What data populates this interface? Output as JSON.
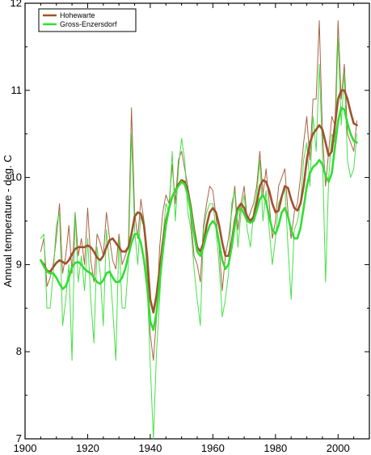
{
  "chart_data": {
    "type": "line",
    "title": "",
    "xlabel": "",
    "ylabel": "Annual temperature - deg. C",
    "xlim": [
      1900,
      2010
    ],
    "ylim": [
      7,
      12
    ],
    "xticks": [
      1900,
      1920,
      1940,
      1960,
      1980,
      2000
    ],
    "yticks": [
      7,
      8,
      9,
      10,
      11,
      12
    ],
    "grid": false,
    "legend_position": "top-left",
    "colors": {
      "hohewarte": "#a0522d",
      "gross": "#33dd33"
    },
    "series": [
      {
        "name": "Hohewarte",
        "role": "smoothed",
        "x": [
          1905,
          1906,
          1907,
          1908,
          1909,
          1910,
          1911,
          1912,
          1913,
          1914,
          1915,
          1916,
          1917,
          1918,
          1919,
          1920,
          1921,
          1922,
          1923,
          1924,
          1925,
          1926,
          1927,
          1928,
          1929,
          1930,
          1931,
          1932,
          1933,
          1934,
          1935,
          1936,
          1937,
          1938,
          1939,
          1940,
          1941,
          1942,
          1943,
          1944,
          1945,
          1946,
          1947,
          1948,
          1949,
          1950,
          1951,
          1952,
          1953,
          1954,
          1955,
          1956,
          1957,
          1958,
          1959,
          1960,
          1961,
          1962,
          1963,
          1964,
          1965,
          1966,
          1967,
          1968,
          1969,
          1970,
          1971,
          1972,
          1973,
          1974,
          1975,
          1976,
          1977,
          1978,
          1979,
          1980,
          1981,
          1982,
          1983,
          1984,
          1985,
          1986,
          1987,
          1988,
          1989,
          1990,
          1991,
          1992,
          1993,
          1994,
          1995,
          1996,
          1997,
          1998,
          1999,
          2000,
          2001,
          2002,
          2003,
          2004,
          2005,
          2006
        ],
        "values": [
          9.05,
          9.0,
          8.93,
          8.92,
          8.97,
          9.02,
          9.05,
          9.03,
          9.01,
          9.05,
          9.12,
          9.18,
          9.2,
          9.2,
          9.2,
          9.22,
          9.2,
          9.15,
          9.08,
          9.05,
          9.1,
          9.2,
          9.28,
          9.3,
          9.25,
          9.2,
          9.15,
          9.15,
          9.2,
          9.35,
          9.55,
          9.6,
          9.58,
          9.45,
          9.1,
          8.6,
          8.45,
          8.65,
          8.95,
          9.25,
          9.5,
          9.65,
          9.78,
          9.85,
          9.92,
          9.97,
          9.95,
          9.85,
          9.65,
          9.4,
          9.2,
          9.15,
          9.25,
          9.45,
          9.6,
          9.65,
          9.6,
          9.45,
          9.25,
          9.1,
          9.1,
          9.25,
          9.5,
          9.65,
          9.7,
          9.65,
          9.55,
          9.5,
          9.55,
          9.7,
          9.9,
          9.97,
          9.95,
          9.85,
          9.7,
          9.6,
          9.62,
          9.78,
          9.9,
          9.88,
          9.75,
          9.65,
          9.62,
          9.7,
          9.9,
          10.2,
          10.4,
          10.5,
          10.55,
          10.6,
          10.55,
          10.4,
          10.25,
          10.3,
          10.6,
          10.9,
          11.0,
          11.0,
          10.9,
          10.75,
          10.62,
          10.6
        ]
      },
      {
        "name": "Hohewarte",
        "role": "annual",
        "x": [
          1905,
          1906,
          1907,
          1908,
          1909,
          1910,
          1911,
          1912,
          1913,
          1914,
          1915,
          1916,
          1917,
          1918,
          1919,
          1920,
          1921,
          1922,
          1923,
          1924,
          1925,
          1926,
          1927,
          1928,
          1929,
          1930,
          1931,
          1932,
          1933,
          1934,
          1935,
          1936,
          1937,
          1938,
          1939,
          1940,
          1941,
          1942,
          1943,
          1944,
          1945,
          1946,
          1947,
          1948,
          1949,
          1950,
          1951,
          1952,
          1953,
          1954,
          1955,
          1956,
          1957,
          1958,
          1959,
          1960,
          1961,
          1962,
          1963,
          1964,
          1965,
          1966,
          1967,
          1968,
          1969,
          1970,
          1971,
          1972,
          1973,
          1974,
          1975,
          1976,
          1977,
          1978,
          1979,
          1980,
          1981,
          1982,
          1983,
          1984,
          1985,
          1986,
          1987,
          1988,
          1989,
          1990,
          1991,
          1992,
          1993,
          1994,
          1995,
          1996,
          1997,
          1998,
          1999,
          2000,
          2001,
          2002,
          2003,
          2004,
          2005,
          2006
        ],
        "values": [
          9.15,
          9.3,
          8.75,
          8.85,
          9.0,
          9.3,
          9.7,
          8.9,
          9.1,
          9.45,
          8.9,
          9.6,
          9.1,
          9.3,
          9.0,
          9.65,
          9.05,
          8.8,
          9.35,
          9.25,
          9.1,
          9.6,
          9.3,
          9.05,
          8.95,
          9.35,
          9.0,
          9.1,
          9.2,
          10.8,
          9.6,
          9.3,
          9.75,
          9.5,
          9.0,
          8.2,
          7.9,
          8.4,
          9.2,
          9.6,
          9.8,
          9.7,
          10.15,
          9.7,
          10.2,
          10.3,
          10.1,
          9.9,
          9.5,
          9.1,
          9.0,
          8.8,
          9.45,
          9.7,
          9.9,
          9.85,
          9.55,
          9.2,
          8.7,
          9.1,
          9.3,
          9.6,
          9.9,
          9.4,
          9.7,
          9.9,
          9.5,
          9.6,
          9.7,
          9.9,
          10.3,
          9.8,
          10.1,
          9.7,
          9.3,
          9.5,
          9.9,
          10.0,
          10.1,
          9.6,
          9.3,
          9.6,
          9.7,
          10.0,
          10.4,
          10.7,
          10.2,
          10.9,
          10.9,
          11.8,
          10.5,
          9.9,
          10.3,
          10.7,
          10.6,
          11.8,
          10.9,
          11.3,
          10.5,
          10.4,
          10.3,
          10.65
        ]
      },
      {
        "name": "Gross-Enzersdorf",
        "role": "smoothed",
        "x": [
          1905,
          1906,
          1907,
          1908,
          1909,
          1910,
          1911,
          1912,
          1913,
          1914,
          1915,
          1916,
          1917,
          1918,
          1919,
          1920,
          1921,
          1922,
          1923,
          1924,
          1925,
          1926,
          1927,
          1928,
          1929,
          1930,
          1931,
          1932,
          1933,
          1934,
          1935,
          1936,
          1937,
          1938,
          1939,
          1940,
          1941,
          1942,
          1943,
          1944,
          1945,
          1946,
          1947,
          1948,
          1949,
          1950,
          1951,
          1952,
          1953,
          1954,
          1955,
          1956,
          1957,
          1958,
          1959,
          1960,
          1961,
          1962,
          1963,
          1964,
          1965,
          1966,
          1967,
          1968,
          1969,
          1970,
          1971,
          1972,
          1973,
          1974,
          1975,
          1976,
          1977,
          1978,
          1979,
          1980,
          1981,
          1982,
          1983,
          1984,
          1985,
          1986,
          1987,
          1988,
          1989,
          1990,
          1991,
          1992,
          1993,
          1994,
          1995,
          1996,
          1997,
          1998,
          1999,
          2000,
          2001,
          2002,
          2003,
          2004,
          2005,
          2006
        ],
        "values": [
          9.05,
          8.98,
          8.92,
          8.9,
          8.9,
          8.85,
          8.78,
          8.72,
          8.75,
          8.85,
          8.97,
          9.02,
          9.03,
          9.0,
          8.95,
          8.92,
          8.9,
          8.85,
          8.8,
          8.78,
          8.82,
          8.9,
          8.92,
          8.85,
          8.8,
          8.8,
          8.85,
          8.95,
          9.1,
          9.25,
          9.35,
          9.35,
          9.25,
          9.05,
          8.75,
          8.35,
          8.25,
          8.45,
          8.8,
          9.15,
          9.45,
          9.65,
          9.78,
          9.85,
          9.9,
          9.95,
          9.92,
          9.8,
          9.6,
          9.35,
          9.15,
          9.1,
          9.2,
          9.35,
          9.45,
          9.5,
          9.45,
          9.25,
          9.05,
          8.95,
          9.0,
          9.2,
          9.45,
          9.62,
          9.65,
          9.58,
          9.5,
          9.48,
          9.5,
          9.62,
          9.75,
          9.8,
          9.72,
          9.55,
          9.4,
          9.35,
          9.45,
          9.6,
          9.65,
          9.55,
          9.4,
          9.3,
          9.3,
          9.42,
          9.65,
          9.9,
          10.05,
          10.12,
          10.15,
          10.2,
          10.15,
          10.02,
          9.95,
          10.05,
          10.35,
          10.65,
          10.8,
          10.78,
          10.62,
          10.5,
          10.42,
          10.4
        ]
      },
      {
        "name": "Gross-Enzersdorf",
        "role": "annual",
        "x": [
          1905,
          1906,
          1907,
          1908,
          1909,
          1910,
          1911,
          1912,
          1913,
          1914,
          1915,
          1916,
          1917,
          1918,
          1919,
          1920,
          1921,
          1922,
          1923,
          1924,
          1925,
          1926,
          1927,
          1928,
          1929,
          1930,
          1931,
          1932,
          1933,
          1934,
          1935,
          1936,
          1937,
          1938,
          1939,
          1940,
          1941,
          1942,
          1943,
          1944,
          1945,
          1946,
          1947,
          1948,
          1949,
          1950,
          1951,
          1952,
          1953,
          1954,
          1955,
          1956,
          1957,
          1958,
          1959,
          1960,
          1961,
          1962,
          1963,
          1964,
          1965,
          1966,
          1967,
          1968,
          1969,
          1970,
          1971,
          1972,
          1973,
          1974,
          1975,
          1976,
          1977,
          1978,
          1979,
          1980,
          1981,
          1982,
          1983,
          1984,
          1985,
          1986,
          1987,
          1988,
          1989,
          1990,
          1991,
          1992,
          1993,
          1994,
          1995,
          1996,
          1997,
          1998,
          1999,
          2000,
          2001,
          2002,
          2003,
          2004,
          2005,
          2006
        ],
        "values": [
          9.3,
          9.35,
          8.5,
          8.5,
          8.9,
          9.45,
          9.6,
          8.3,
          8.6,
          9.0,
          7.9,
          9.6,
          8.8,
          9.1,
          8.7,
          9.3,
          8.6,
          8.1,
          9.2,
          8.9,
          8.3,
          9.4,
          9.0,
          8.5,
          7.9,
          9.3,
          8.5,
          8.5,
          9.0,
          10.5,
          9.4,
          9.0,
          9.6,
          9.5,
          8.8,
          7.85,
          7.0,
          8.0,
          8.6,
          9.3,
          9.7,
          9.6,
          10.3,
          9.5,
          10.1,
          10.45,
          10.2,
          9.6,
          9.4,
          8.95,
          8.6,
          8.3,
          9.4,
          9.6,
          9.7,
          9.7,
          9.4,
          9.0,
          8.4,
          8.6,
          8.9,
          9.7,
          9.85,
          9.2,
          9.6,
          9.8,
          9.4,
          9.2,
          9.6,
          9.8,
          10.2,
          9.5,
          9.85,
          9.4,
          9.0,
          9.3,
          9.7,
          9.8,
          9.9,
          9.2,
          8.6,
          9.4,
          9.5,
          9.7,
          10.2,
          10.4,
          9.9,
          10.7,
          10.3,
          11.3,
          10.3,
          8.8,
          10.0,
          10.5,
          10.4,
          11.6,
          10.6,
          11.2,
          10.2,
          10.0,
          10.1,
          10.5
        ]
      }
    ]
  }
}
